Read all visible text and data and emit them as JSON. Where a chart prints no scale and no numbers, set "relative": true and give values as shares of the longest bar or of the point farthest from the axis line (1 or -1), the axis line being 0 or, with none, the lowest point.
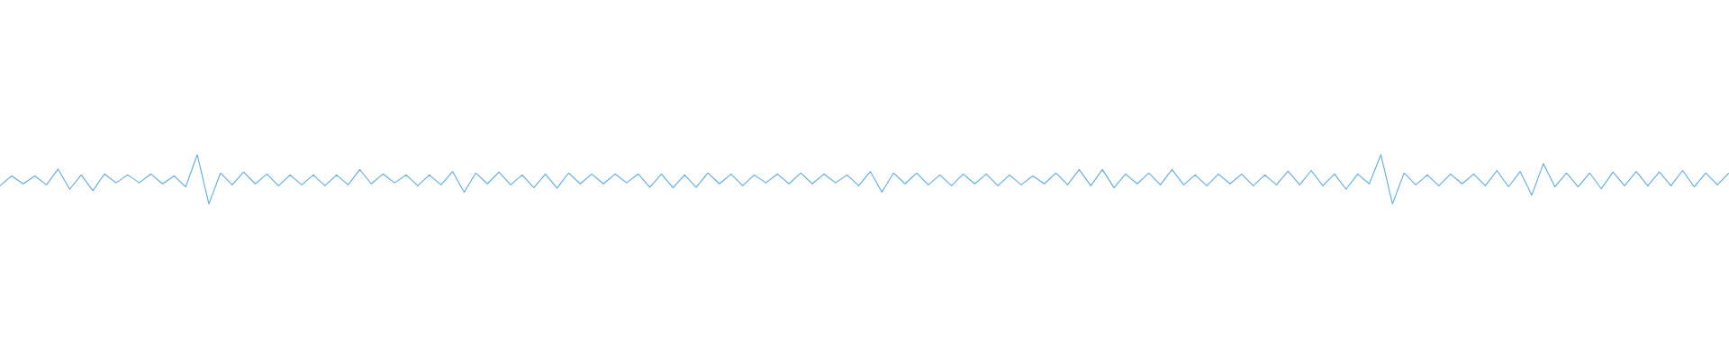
{
  "chart_data": {
    "type": "line",
    "relative": true,
    "categories": [
      null,
      null,
      null,
      null,
      null,
      null,
      null,
      null,
      null,
      null,
      null,
      null,
      null,
      null,
      null,
      null,
      null,
      null,
      null,
      null,
      null,
      null,
      null,
      null,
      null,
      null,
      null,
      null,
      null,
      null,
      null,
      null,
      null,
      null,
      null,
      null,
      null,
      null,
      null,
      null,
      null,
      null,
      null,
      null,
      null,
      null,
      null,
      null,
      null,
      null,
      null,
      null,
      null,
      null,
      null,
      null,
      null,
      null,
      null,
      null,
      null,
      null,
      null,
      null,
      null,
      null,
      null,
      null,
      null,
      null,
      null,
      null,
      null,
      null,
      null,
      null,
      null,
      null,
      null,
      null,
      null,
      null,
      null,
      null,
      null,
      null,
      null,
      null,
      null,
      null,
      null,
      null,
      null,
      null,
      null,
      null,
      null,
      null,
      null,
      null,
      null,
      null,
      null,
      null,
      null,
      null,
      null,
      null,
      null,
      null,
      null,
      null,
      null,
      null,
      null,
      null,
      null,
      null,
      null,
      null,
      null,
      null,
      null,
      null,
      null,
      null,
      null,
      null,
      null,
      null,
      null,
      null,
      null,
      null,
      null,
      null,
      null,
      null,
      null,
      null,
      null,
      null,
      null,
      null,
      null,
      null,
      null,
      null,
      null,
      null
    ],
    "series": [
      {
        "color": "#5dade2",
        "values": [
          0.37,
          0.57,
          0.41,
          0.57,
          0.39,
          0.71,
          0.3,
          0.59,
          0.27,
          0.61,
          0.43,
          0.59,
          0.43,
          0.61,
          0.41,
          0.57,
          0.35,
          1,
          0,
          0.63,
          0.39,
          0.65,
          0.41,
          0.61,
          0.37,
          0.59,
          0.39,
          0.59,
          0.37,
          0.59,
          0.39,
          0.7,
          0.41,
          0.61,
          0.43,
          0.59,
          0.37,
          0.59,
          0.39,
          0.66,
          0.24,
          0.63,
          0.41,
          0.65,
          0.39,
          0.59,
          0.33,
          0.61,
          0.32,
          0.63,
          0.41,
          0.61,
          0.41,
          0.61,
          0.43,
          0.61,
          0.34,
          0.61,
          0.33,
          0.59,
          0.34,
          0.63,
          0.41,
          0.61,
          0.37,
          0.59,
          0.43,
          0.61,
          0.41,
          0.63,
          0.41,
          0.61,
          0.43,
          0.59,
          0.37,
          0.66,
          0.24,
          0.63,
          0.41,
          0.63,
          0.39,
          0.59,
          0.37,
          0.61,
          0.41,
          0.61,
          0.37,
          0.59,
          0.39,
          0.57,
          0.41,
          0.63,
          0.39,
          0.7,
          0.37,
          0.7,
          0.33,
          0.61,
          0.41,
          0.63,
          0.39,
          0.7,
          0.39,
          0.59,
          0.37,
          0.61,
          0.41,
          0.61,
          0.37,
          0.59,
          0.39,
          0.67,
          0.39,
          0.68,
          0.37,
          0.61,
          0.3,
          0.61,
          0.41,
          1,
          0,
          0.63,
          0.39,
          0.59,
          0.37,
          0.61,
          0.41,
          0.61,
          0.37,
          0.68,
          0.35,
          0.66,
          0.18,
          0.82,
          0.35,
          0.63,
          0.35,
          0.63,
          0.31,
          0.65,
          0.37,
          0.66,
          0.37,
          0.65,
          0.37,
          0.68,
          0.35,
          0.63,
          0.39,
          0.63
        ]
      }
    ]
  }
}
